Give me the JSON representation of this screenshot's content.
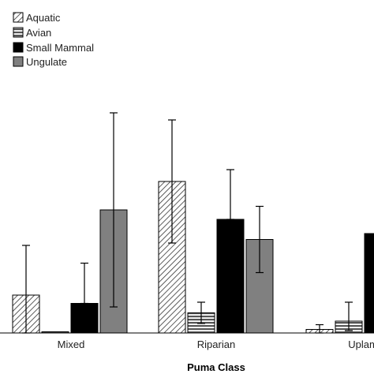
{
  "chart_data": {
    "type": "bar",
    "categories": [
      "Mixed",
      "Riparian",
      "Uplam"
    ],
    "xlabel": "Puma Class",
    "ylabel": "",
    "ylim": [
      0,
      100
    ],
    "grid": false,
    "legend_position": "top-left",
    "series": [
      {
        "name": "Aquatic",
        "pattern": "diagonal-hatch",
        "color": "#ffffff",
        "values": [
          16,
          64,
          1.5
        ],
        "err_low": [
          26,
          26,
          1.5
        ],
        "err_high": [
          21,
          26,
          2
        ]
      },
      {
        "name": "Avian",
        "pattern": "horizontal-stripes",
        "color": "#888888",
        "values": [
          0.5,
          8.5,
          5
        ],
        "err_low": [
          0,
          4.5,
          4
        ],
        "err_high": [
          0,
          4.5,
          8
        ]
      },
      {
        "name": "Small Mammal",
        "pattern": "solid",
        "color": "#000000",
        "values": [
          12.5,
          48,
          42
        ],
        "err_low": [
          0,
          0,
          0
        ],
        "err_high": [
          17,
          21,
          0
        ]
      },
      {
        "name": "Ungulate",
        "pattern": "solid",
        "color": "#808080",
        "values": [
          52,
          39.5,
          0
        ],
        "err_low": [
          41,
          14,
          0
        ],
        "err_high": [
          41,
          14,
          0
        ]
      }
    ]
  }
}
